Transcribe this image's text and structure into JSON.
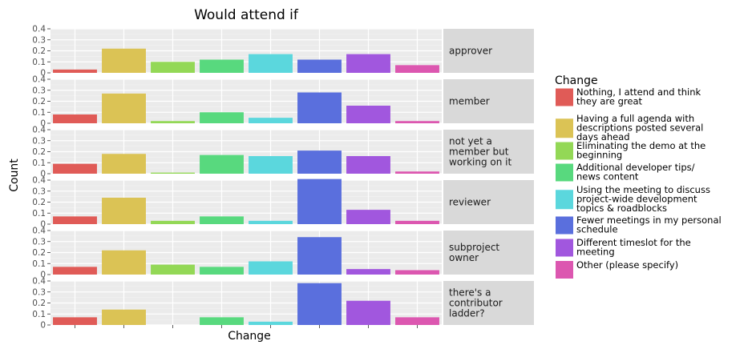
{
  "chart_data": {
    "type": "bar",
    "title": "Would attend if",
    "xlabel": "Change",
    "ylabel": "Count",
    "ylim": [
      0,
      0.4
    ],
    "yticks": [
      "0",
      "0.1",
      "0.2",
      "0.3",
      "0.4"
    ],
    "grid": true,
    "facet_by": "role",
    "legend": {
      "title": "Change",
      "position": "right"
    },
    "categories": [
      "Nothing, I attend and think they are great",
      "Having a full agenda with descriptions posted several days ahead",
      "Eliminating the demo at the beginning",
      "Additional developer tips/ news content",
      "Using the meeting to discuss project-wide development topics & roadblocks",
      "Fewer meetings in my personal schedule",
      "Different timeslot for the meeting",
      "Other (please specify)"
    ],
    "legend_labels": [
      [
        "Nothing, I attend and think",
        "they are great"
      ],
      [
        "Having a full agenda with",
        "descriptions posted several",
        "days ahead"
      ],
      [
        "Eliminating the demo at the",
        "beginning"
      ],
      [
        "Additional developer tips/",
        "news content"
      ],
      [
        "Using the meeting to discuss",
        "project-wide development",
        "topics & roadblocks"
      ],
      [
        "Fewer meetings in my personal",
        "schedule"
      ],
      [
        "Different timeslot for the",
        "meeting"
      ],
      [
        "Other (please specify)"
      ]
    ],
    "colors": [
      "#e05b57",
      "#dbc355",
      "#93d856",
      "#58d97e",
      "#5bd7dd",
      "#5a6fdd",
      "#a157de",
      "#dc57b0"
    ],
    "facets": [
      {
        "label": [
          "approver"
        ],
        "values": [
          0.03,
          0.22,
          0.1,
          0.12,
          0.17,
          0.12,
          0.17,
          0.07
        ]
      },
      {
        "label": [
          "member"
        ],
        "values": [
          0.08,
          0.27,
          0.02,
          0.1,
          0.05,
          0.28,
          0.16,
          0.02
        ]
      },
      {
        "label": [
          "not yet a",
          "member but",
          "working on it"
        ],
        "values": [
          0.09,
          0.18,
          0.01,
          0.17,
          0.16,
          0.21,
          0.16,
          0.02
        ]
      },
      {
        "label": [
          "reviewer"
        ],
        "values": [
          0.07,
          0.24,
          0.03,
          0.07,
          0.03,
          0.41,
          0.13,
          0.03
        ]
      },
      {
        "label": [
          "subproject",
          "owner"
        ],
        "values": [
          0.07,
          0.22,
          0.09,
          0.07,
          0.12,
          0.34,
          0.05,
          0.04
        ]
      },
      {
        "label": [
          "there's a",
          "contributor",
          "ladder?"
        ],
        "values": [
          0.07,
          0.14,
          0.0,
          0.07,
          0.03,
          0.38,
          0.22,
          0.07
        ]
      }
    ]
  }
}
